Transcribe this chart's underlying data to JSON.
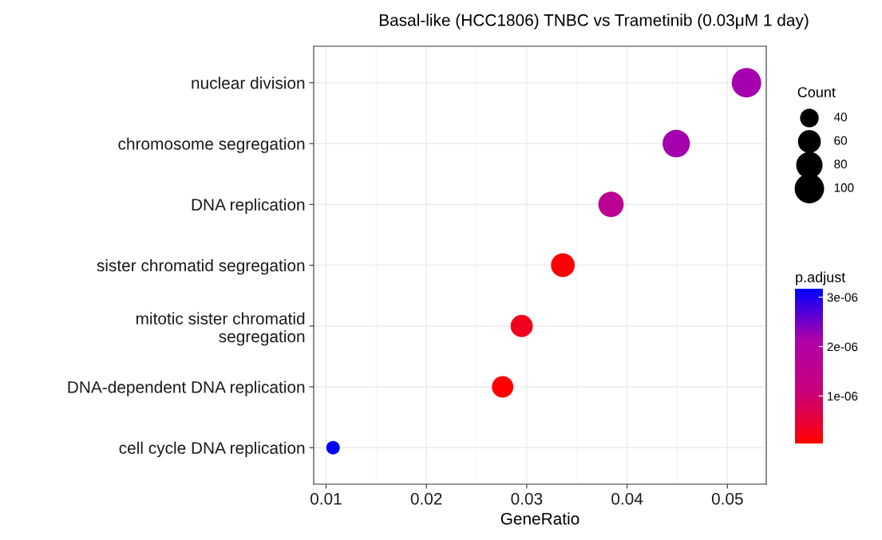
{
  "chart_data": {
    "type": "bubble",
    "orientation": "horizontal",
    "title": "Basal-like (HCC1806) TNBC vs Trametinib (0.03μM 1 day)",
    "xlabel": "GeneRatio",
    "legend_title": "Count",
    "clabel": "p.adjust",
    "categories": [
      "nuclear division",
      "chromosome segregation",
      "DNA replication",
      "sister chromatid segregation",
      "mitotic sister chromatid\nsegregation",
      "DNA-dependent DNA replication",
      "cell cycle DNA replication"
    ],
    "values": [
      0.0519,
      0.0449,
      0.0384,
      0.0336,
      0.0295,
      0.0276,
      0.0107
    ],
    "sizes": [
      100,
      86,
      74,
      65,
      57,
      53,
      21
    ],
    "size_legend": [
      40,
      60,
      80,
      100
    ],
    "cvalues": [
      2.2e-06,
      2.2e-06,
      1.6e-06,
      1e-07,
      3e-07,
      5e-08,
      3.17e-06
    ],
    "clim": [
      4e-08,
      3.17e-06
    ],
    "cticks": [
      {
        "value": 1e-06,
        "label": "1e-06"
      },
      {
        "value": 2e-06,
        "label": "2e-06"
      },
      {
        "value": 3e-06,
        "label": "3e-06"
      }
    ],
    "xlim": [
      0.00877,
      0.05387
    ],
    "xticks": [
      0.01,
      0.02,
      0.03,
      0.04,
      0.05
    ],
    "grid": true
  }
}
